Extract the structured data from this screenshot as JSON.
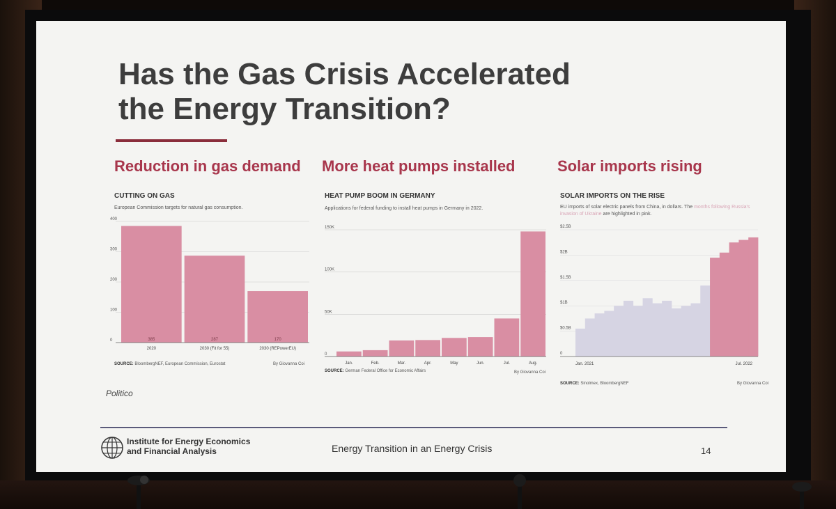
{
  "slide": {
    "title_lines": [
      "Has the Gas Crisis Accelerated",
      "the Energy Transition?"
    ],
    "accent_color": "#a8364c",
    "footer": {
      "org_lines": [
        "Institute for Energy Economics",
        "and Financial Analysis"
      ],
      "center_text": "Energy Transition in an Energy Crisis",
      "page": "14"
    }
  },
  "panels": [
    {
      "heading": "Reduction in gas demand",
      "title": "CUTTING ON GAS",
      "subtitle": "European Commission targets for natural gas consumption.",
      "source_label": "SOURCE:",
      "source_text": "BloombergNEF, European Commission, Eurostat",
      "byline": "By Giovanna Coi",
      "publisher": "Politico"
    },
    {
      "heading": "More heat pumps installed",
      "title": "HEAT PUMP BOOM IN GERMANY",
      "subtitle": "Applications for federal funding to install heat pumps in Germany in 2022.",
      "source_label": "SOURCE:",
      "source_text": "German Federal Office for Economic Affairs",
      "byline": "By Giovanna Coi"
    },
    {
      "heading": "Solar imports rising",
      "title": "SOLAR IMPORTS ON THE RISE",
      "subtitle_pre": "EU imports of solar electric panels from China, in dollars. The ",
      "subtitle_pink": "months following Russia's invasion of Ukraine",
      "subtitle_post": " are highlighted in pink.",
      "source_label": "SOURCE:",
      "source_text": "Sinolmex, BloombergNEF",
      "byline": "By Giovanna Coi"
    }
  ],
  "chart_data": [
    {
      "type": "bar",
      "title": "CUTTING ON GAS",
      "categories": [
        "2020",
        "2030 (Fit for 55)",
        "2030 (REPowerEU)"
      ],
      "values": [
        385,
        287,
        170
      ],
      "value_labels": [
        "385",
        "287",
        "170"
      ],
      "ylim": [
        0,
        400
      ],
      "yticks": [
        "0",
        "100",
        "200",
        "300",
        "400"
      ],
      "color": "#d98ea3",
      "grid": true
    },
    {
      "type": "bar",
      "title": "HEAT PUMP BOOM IN GERMANY",
      "categories": [
        "Jan.",
        "Feb.",
        "Mar.",
        "Apr.",
        "May",
        "Jun.",
        "Jul.",
        "Aug."
      ],
      "values": [
        6000,
        7500,
        19000,
        19500,
        22000,
        23000,
        45000,
        148000
      ],
      "ylim": [
        0,
        150000
      ],
      "yticks": [
        "0",
        "50K",
        "100K",
        "150K"
      ],
      "color": "#d98ea3",
      "grid": true
    },
    {
      "type": "area",
      "title": "SOLAR IMPORTS ON THE RISE",
      "x_labels": [
        "Jan. 2021",
        "Jul. 2022"
      ],
      "values": [
        0.55,
        0.75,
        0.85,
        0.9,
        1.0,
        1.1,
        1.0,
        1.15,
        1.05,
        1.1,
        0.95,
        1.0,
        1.05,
        1.4,
        1.95,
        2.05,
        2.25,
        2.3,
        2.35
      ],
      "highlight_from_index": 14,
      "base_color": "#d6d4e3",
      "highlight_color": "#d98ea3",
      "ylim": [
        0,
        2.5
      ],
      "yticks": [
        "0",
        "$0.5B",
        "$1B",
        "$1.5B",
        "$2B",
        "$2.5B"
      ],
      "grid": true
    }
  ]
}
